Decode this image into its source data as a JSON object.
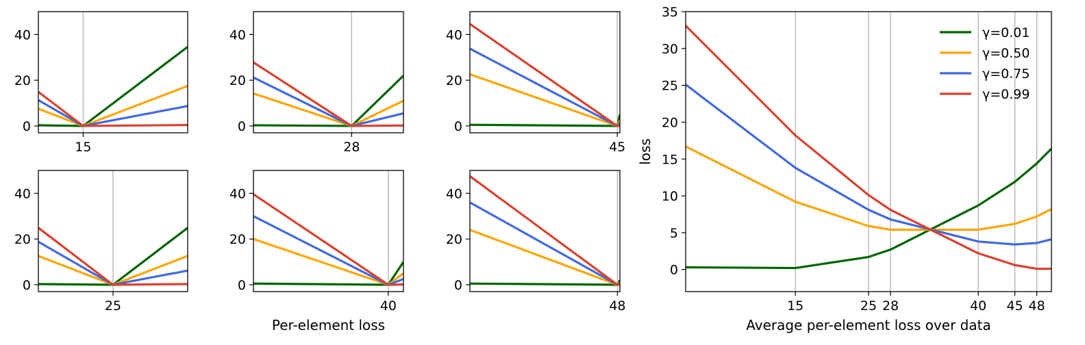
{
  "colors": {
    "gamma_0_01": "#006400",
    "gamma_0_50": "#ffa500",
    "gamma_0_75": "#4169e1",
    "gamma_0_99": "#d9412e",
    "vline": "#b0b0b0"
  },
  "chart_data": [
    {
      "type": "line",
      "panel": "small-1",
      "xlim": [
        9,
        29
      ],
      "ylim": [
        -3,
        50
      ],
      "xticks": [
        15
      ],
      "xtick_labels": [
        "15"
      ],
      "yticks": [
        0,
        20,
        40
      ],
      "ytick_labels": [
        "0",
        "20",
        "40"
      ],
      "vline": 15,
      "x": [
        9,
        15,
        29
      ],
      "series": [
        {
          "values": [
            0.3,
            0.0,
            34.6
          ],
          "color": "gamma_0_01"
        },
        {
          "values": [
            7.5,
            0.0,
            17.5
          ],
          "color": "gamma_0_50"
        },
        {
          "values": [
            11.3,
            0.0,
            8.7
          ],
          "color": "gamma_0_75"
        },
        {
          "values": [
            14.9,
            0.0,
            0.4
          ],
          "color": "gamma_0_99"
        }
      ]
    },
    {
      "type": "line",
      "panel": "small-2",
      "xlim": [
        13.6,
        35.6
      ],
      "ylim": [
        -3,
        50
      ],
      "xticks": [
        28
      ],
      "xtick_labels": [
        "28"
      ],
      "yticks": [
        0,
        20,
        40
      ],
      "ytick_labels": [
        "0",
        "20",
        "40"
      ],
      "vline": 28,
      "x": [
        13.6,
        28,
        35.6
      ],
      "series": [
        {
          "values": [
            0.3,
            0.0,
            22.0
          ],
          "color": "gamma_0_01"
        },
        {
          "values": [
            14.2,
            0.0,
            11.0
          ],
          "color": "gamma_0_50"
        },
        {
          "values": [
            21.2,
            0.0,
            5.5
          ],
          "color": "gamma_0_75"
        },
        {
          "values": [
            27.8,
            0.0,
            0.2
          ],
          "color": "gamma_0_99"
        }
      ]
    },
    {
      "type": "line",
      "panel": "small-3",
      "xlim": [
        0,
        45.8
      ],
      "ylim": [
        -3,
        50
      ],
      "xticks": [
        45
      ],
      "xtick_labels": [
        "45"
      ],
      "yticks": [
        0,
        20,
        40
      ],
      "ytick_labels": [
        "0",
        "20",
        "40"
      ],
      "vline": 45,
      "x": [
        0,
        45,
        45.8
      ],
      "series": [
        {
          "values": [
            0.5,
            0.0,
            5.0
          ],
          "color": "gamma_0_01"
        },
        {
          "values": [
            22.6,
            0.0,
            2.5
          ],
          "color": "gamma_0_50"
        },
        {
          "values": [
            33.8,
            0.0,
            1.2
          ],
          "color": "gamma_0_75"
        },
        {
          "values": [
            44.6,
            0.0,
            0.0
          ],
          "color": "gamma_0_99"
        }
      ]
    },
    {
      "type": "line",
      "panel": "small-4",
      "xlim": [
        18,
        32
      ],
      "ylim": [
        -3,
        50
      ],
      "xticks": [
        25
      ],
      "xtick_labels": [
        "25"
      ],
      "yticks": [
        0,
        20,
        40
      ],
      "ytick_labels": [
        "0",
        "20",
        "40"
      ],
      "vline": 25,
      "x": [
        18,
        25,
        32
      ],
      "series": [
        {
          "values": [
            0.3,
            0.0,
            24.9
          ],
          "color": "gamma_0_01"
        },
        {
          "values": [
            12.6,
            0.0,
            12.6
          ],
          "color": "gamma_0_50"
        },
        {
          "values": [
            18.8,
            0.0,
            6.2
          ],
          "color": "gamma_0_75"
        },
        {
          "values": [
            24.9,
            0.0,
            0.3
          ],
          "color": "gamma_0_99"
        }
      ]
    },
    {
      "type": "line",
      "panel": "small-5",
      "xlim": [
        0,
        44.5
      ],
      "ylim": [
        -3,
        50
      ],
      "xticks": [
        40
      ],
      "xtick_labels": [
        "40"
      ],
      "yticks": [
        0,
        20,
        40
      ],
      "ytick_labels": [
        "0",
        "20",
        "40"
      ],
      "xlabel": "Per-element loss",
      "vline": 40,
      "x": [
        0,
        40,
        44.5
      ],
      "series": [
        {
          "values": [
            0.5,
            0.0,
            10.0
          ],
          "color": "gamma_0_01"
        },
        {
          "values": [
            20.0,
            0.0,
            5.0
          ],
          "color": "gamma_0_50"
        },
        {
          "values": [
            30.0,
            0.0,
            2.5
          ],
          "color": "gamma_0_75"
        },
        {
          "values": [
            39.6,
            0.0,
            0.1
          ],
          "color": "gamma_0_99"
        }
      ]
    },
    {
      "type": "line",
      "panel": "small-6",
      "xlim": [
        0,
        48.8
      ],
      "ylim": [
        -3,
        50
      ],
      "xticks": [
        48
      ],
      "xtick_labels": [
        "48"
      ],
      "yticks": [
        0,
        20,
        40
      ],
      "ytick_labels": [
        "0",
        "20",
        "40"
      ],
      "vline": 48,
      "x": [
        0,
        48,
        48.8
      ],
      "series": [
        {
          "values": [
            0.5,
            0.0,
            2.0
          ],
          "color": "gamma_0_01"
        },
        {
          "values": [
            24.0,
            0.0,
            1.0
          ],
          "color": "gamma_0_50"
        },
        {
          "values": [
            36.0,
            0.0,
            0.5
          ],
          "color": "gamma_0_75"
        },
        {
          "values": [
            47.5,
            0.0,
            0.0
          ],
          "color": "gamma_0_99"
        }
      ]
    },
    {
      "type": "line",
      "panel": "large",
      "xlim": [
        0,
        50
      ],
      "ylim": [
        -3,
        35
      ],
      "xticks": [
        15,
        25,
        28,
        40,
        45,
        48
      ],
      "xtick_labels": [
        "15",
        "25",
        "28",
        "40",
        "45",
        "48"
      ],
      "yticks": [
        0,
        5,
        10,
        15,
        20,
        25,
        30,
        35
      ],
      "ytick_labels": [
        "0",
        "5",
        "10",
        "15",
        "20",
        "25",
        "30",
        "35"
      ],
      "vlines": [
        15,
        25,
        28,
        40,
        45,
        48
      ],
      "xlabel": "Average per-element loss over data",
      "ylabel": "loss",
      "legend_position": "top-right",
      "x": [
        0,
        15,
        25,
        28,
        40,
        45,
        48,
        50
      ],
      "series": [
        {
          "name": "γ=0.01",
          "values": [
            0.3,
            0.2,
            1.7,
            2.7,
            8.7,
            11.9,
            14.4,
            16.4
          ],
          "color": "gamma_0_01"
        },
        {
          "name": "γ=0.50",
          "values": [
            16.7,
            9.2,
            5.9,
            5.4,
            5.4,
            6.2,
            7.2,
            8.2
          ],
          "color": "gamma_0_50"
        },
        {
          "name": "γ=0.75",
          "values": [
            25.1,
            13.8,
            8.1,
            6.8,
            3.8,
            3.4,
            3.6,
            4.1
          ],
          "color": "gamma_0_75"
        },
        {
          "name": "γ=0.99",
          "values": [
            33.1,
            18.2,
            10.1,
            8.1,
            2.2,
            0.6,
            0.1,
            0.1
          ],
          "color": "gamma_0_99"
        }
      ]
    }
  ]
}
